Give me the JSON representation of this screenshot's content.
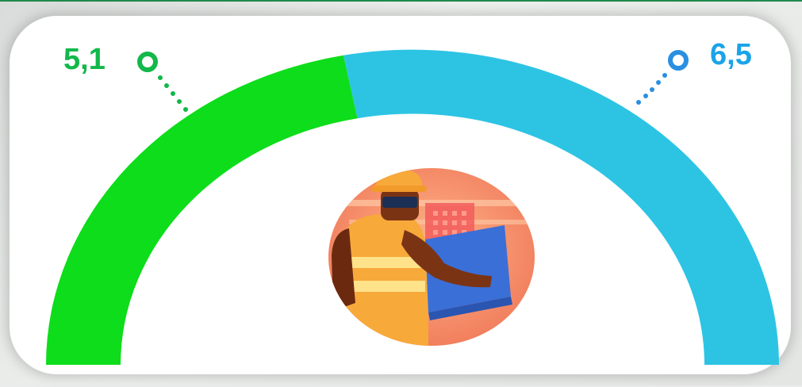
{
  "chart_data": {
    "type": "gauge",
    "segments": [
      {
        "value": 5.1,
        "label": "5,1",
        "color": "#0ddd1a",
        "marker_color": "#12b84a"
      },
      {
        "value": 6.5,
        "label": "6,5",
        "color": "#2dc4e4",
        "marker_color": "#2a8fe0"
      }
    ]
  },
  "illustration": {
    "icon": "construction-worker-with-blueprint-icon"
  }
}
